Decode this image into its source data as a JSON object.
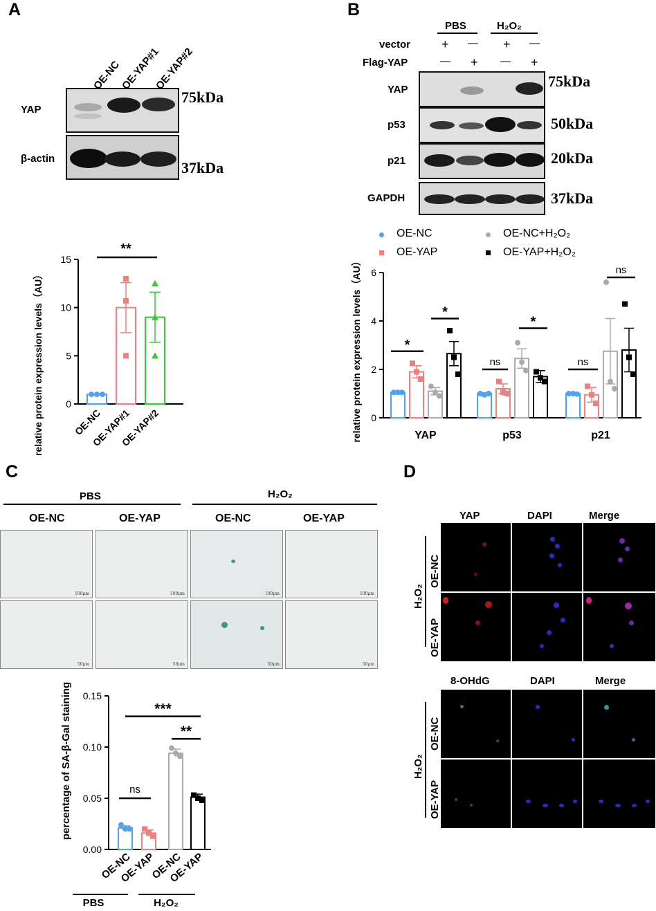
{
  "panel_labels": {
    "a": "A",
    "b": "B",
    "c": "C",
    "d": "D"
  },
  "panel_a": {
    "lanes": [
      "OE-NC",
      "OE-YAP#1",
      "OE-YAP#2"
    ],
    "rows": [
      "YAP",
      "β-actin"
    ],
    "markers": [
      "75kDa",
      "37kDa"
    ],
    "significance": "**"
  },
  "panel_b": {
    "groups": [
      "PBS",
      "H₂O₂"
    ],
    "treatments": [
      {
        "label": "vector",
        "signs": [
          "+",
          "—",
          "+",
          "—"
        ]
      },
      {
        "label": "Flag-YAP",
        "signs": [
          "—",
          "+",
          "—",
          "+"
        ]
      }
    ],
    "rows": [
      "YAP",
      "p53",
      "p21",
      "GAPDH"
    ],
    "markers": [
      "75kDa",
      "50kDa",
      "20kDa",
      "37kDa"
    ],
    "legend": [
      "OE-NC",
      "OE-YAP",
      "OE-NC+H₂O₂",
      "OE-YAP+H₂O₂"
    ],
    "significance": [
      "*",
      "*",
      "ns",
      "*",
      "ns",
      "ns"
    ]
  },
  "panel_c": {
    "groups": [
      "PBS",
      "H₂O₂"
    ],
    "columns": [
      "OE-NC",
      "OE-YAP",
      "OE-NC",
      "OE-YAP"
    ],
    "scalebars": [
      "100μm",
      "50μm"
    ],
    "significance": [
      "***",
      "**",
      "ns"
    ],
    "group_labels": [
      "PBS",
      "H₂O₂"
    ]
  },
  "panel_d": {
    "top_columns": [
      "YAP",
      "DAPI",
      "Merge"
    ],
    "bottom_columns": [
      "8-OHdG",
      "DAPI",
      "Merge"
    ],
    "rows": [
      "OE-NC",
      "OE-YAP"
    ],
    "side_label": "H₂O₂"
  },
  "chart_data": [
    {
      "type": "bar",
      "panel": "A",
      "categories": [
        "OE-NC",
        "OE-YAP#1",
        "OE-YAP#2"
      ],
      "values": [
        1.0,
        10.0,
        9.0
      ],
      "errors": [
        0.05,
        2.6,
        2.6
      ],
      "points": [
        [
          1.0,
          1.0,
          1.0
        ],
        [
          13.0,
          10.7,
          5.0
        ],
        [
          12.5,
          9.0,
          5.0
        ]
      ],
      "colors": [
        "#4da3f0",
        "#f08080",
        "#33cc33"
      ],
      "ylabel": "YAP relative protein expression levels（AU）",
      "ylim": [
        0,
        15
      ],
      "yticks": [
        0,
        5,
        10,
        15
      ]
    },
    {
      "type": "bar",
      "panel": "B",
      "categories": [
        "YAP",
        "p53",
        "p21"
      ],
      "series": [
        {
          "name": "OE-NC",
          "values": [
            1.05,
            1.0,
            1.0
          ],
          "errors": [
            0.03,
            0.03,
            0.03
          ],
          "points": [
            [
              1.05,
              1.05,
              1.05
            ],
            [
              1.0,
              0.95,
              1.0
            ],
            [
              1.0,
              1.0,
              0.98
            ]
          ],
          "color": "#4da3f0"
        },
        {
          "name": "OE-YAP",
          "values": [
            1.9,
            1.2,
            0.95
          ],
          "errors": [
            0.25,
            0.2,
            0.3
          ],
          "points": [
            [
              2.25,
              1.9,
              1.6
            ],
            [
              1.5,
              1.05,
              1.0
            ],
            [
              1.3,
              0.95,
              0.6
            ]
          ],
          "color": "#f08080"
        },
        {
          "name": "OE-NC+H₂O₂",
          "values": [
            1.1,
            2.45,
            2.75
          ],
          "errors": [
            0.15,
            0.4,
            1.35
          ],
          "points": [
            [
              1.3,
              1.05,
              0.9
            ],
            [
              3.1,
              2.3,
              1.95
            ],
            [
              5.6,
              1.5,
              1.2
            ]
          ],
          "color": "#aaaaaa"
        },
        {
          "name": "OE-YAP+H₂O₂",
          "values": [
            2.65,
            1.7,
            2.8
          ],
          "errors": [
            0.5,
            0.25,
            0.9
          ],
          "points": [
            [
              3.6,
              2.5,
              1.8
            ],
            [
              1.9,
              1.65,
              1.5
            ],
            [
              4.7,
              2.5,
              1.8
            ]
          ],
          "color": "#000000"
        }
      ],
      "ylabel": "relative protein expression levels（AU）",
      "ylim": [
        0,
        6
      ],
      "yticks": [
        0,
        2,
        4,
        6
      ]
    },
    {
      "type": "bar",
      "panel": "C",
      "categories": [
        "OE-NC",
        "OE-YAP",
        "OE-NC",
        "OE-YAP"
      ],
      "values": [
        0.021,
        0.016,
        0.094,
        0.051
      ],
      "errors": [
        0.002,
        0.003,
        0.004,
        0.003
      ],
      "points": [
        [
          0.024,
          0.02,
          0.02
        ],
        [
          0.02,
          0.016,
          0.013
        ],
        [
          0.099,
          0.094,
          0.091
        ],
        [
          0.053,
          0.05,
          0.048
        ]
      ],
      "colors": [
        "#4da3f0",
        "#f08080",
        "#aaaaaa",
        "#000000"
      ],
      "ylabel": "percentage of SA-β-Gal staining",
      "ylim": [
        0,
        0.15
      ],
      "yticks": [
        0.0,
        0.05,
        0.1,
        0.15
      ]
    }
  ]
}
